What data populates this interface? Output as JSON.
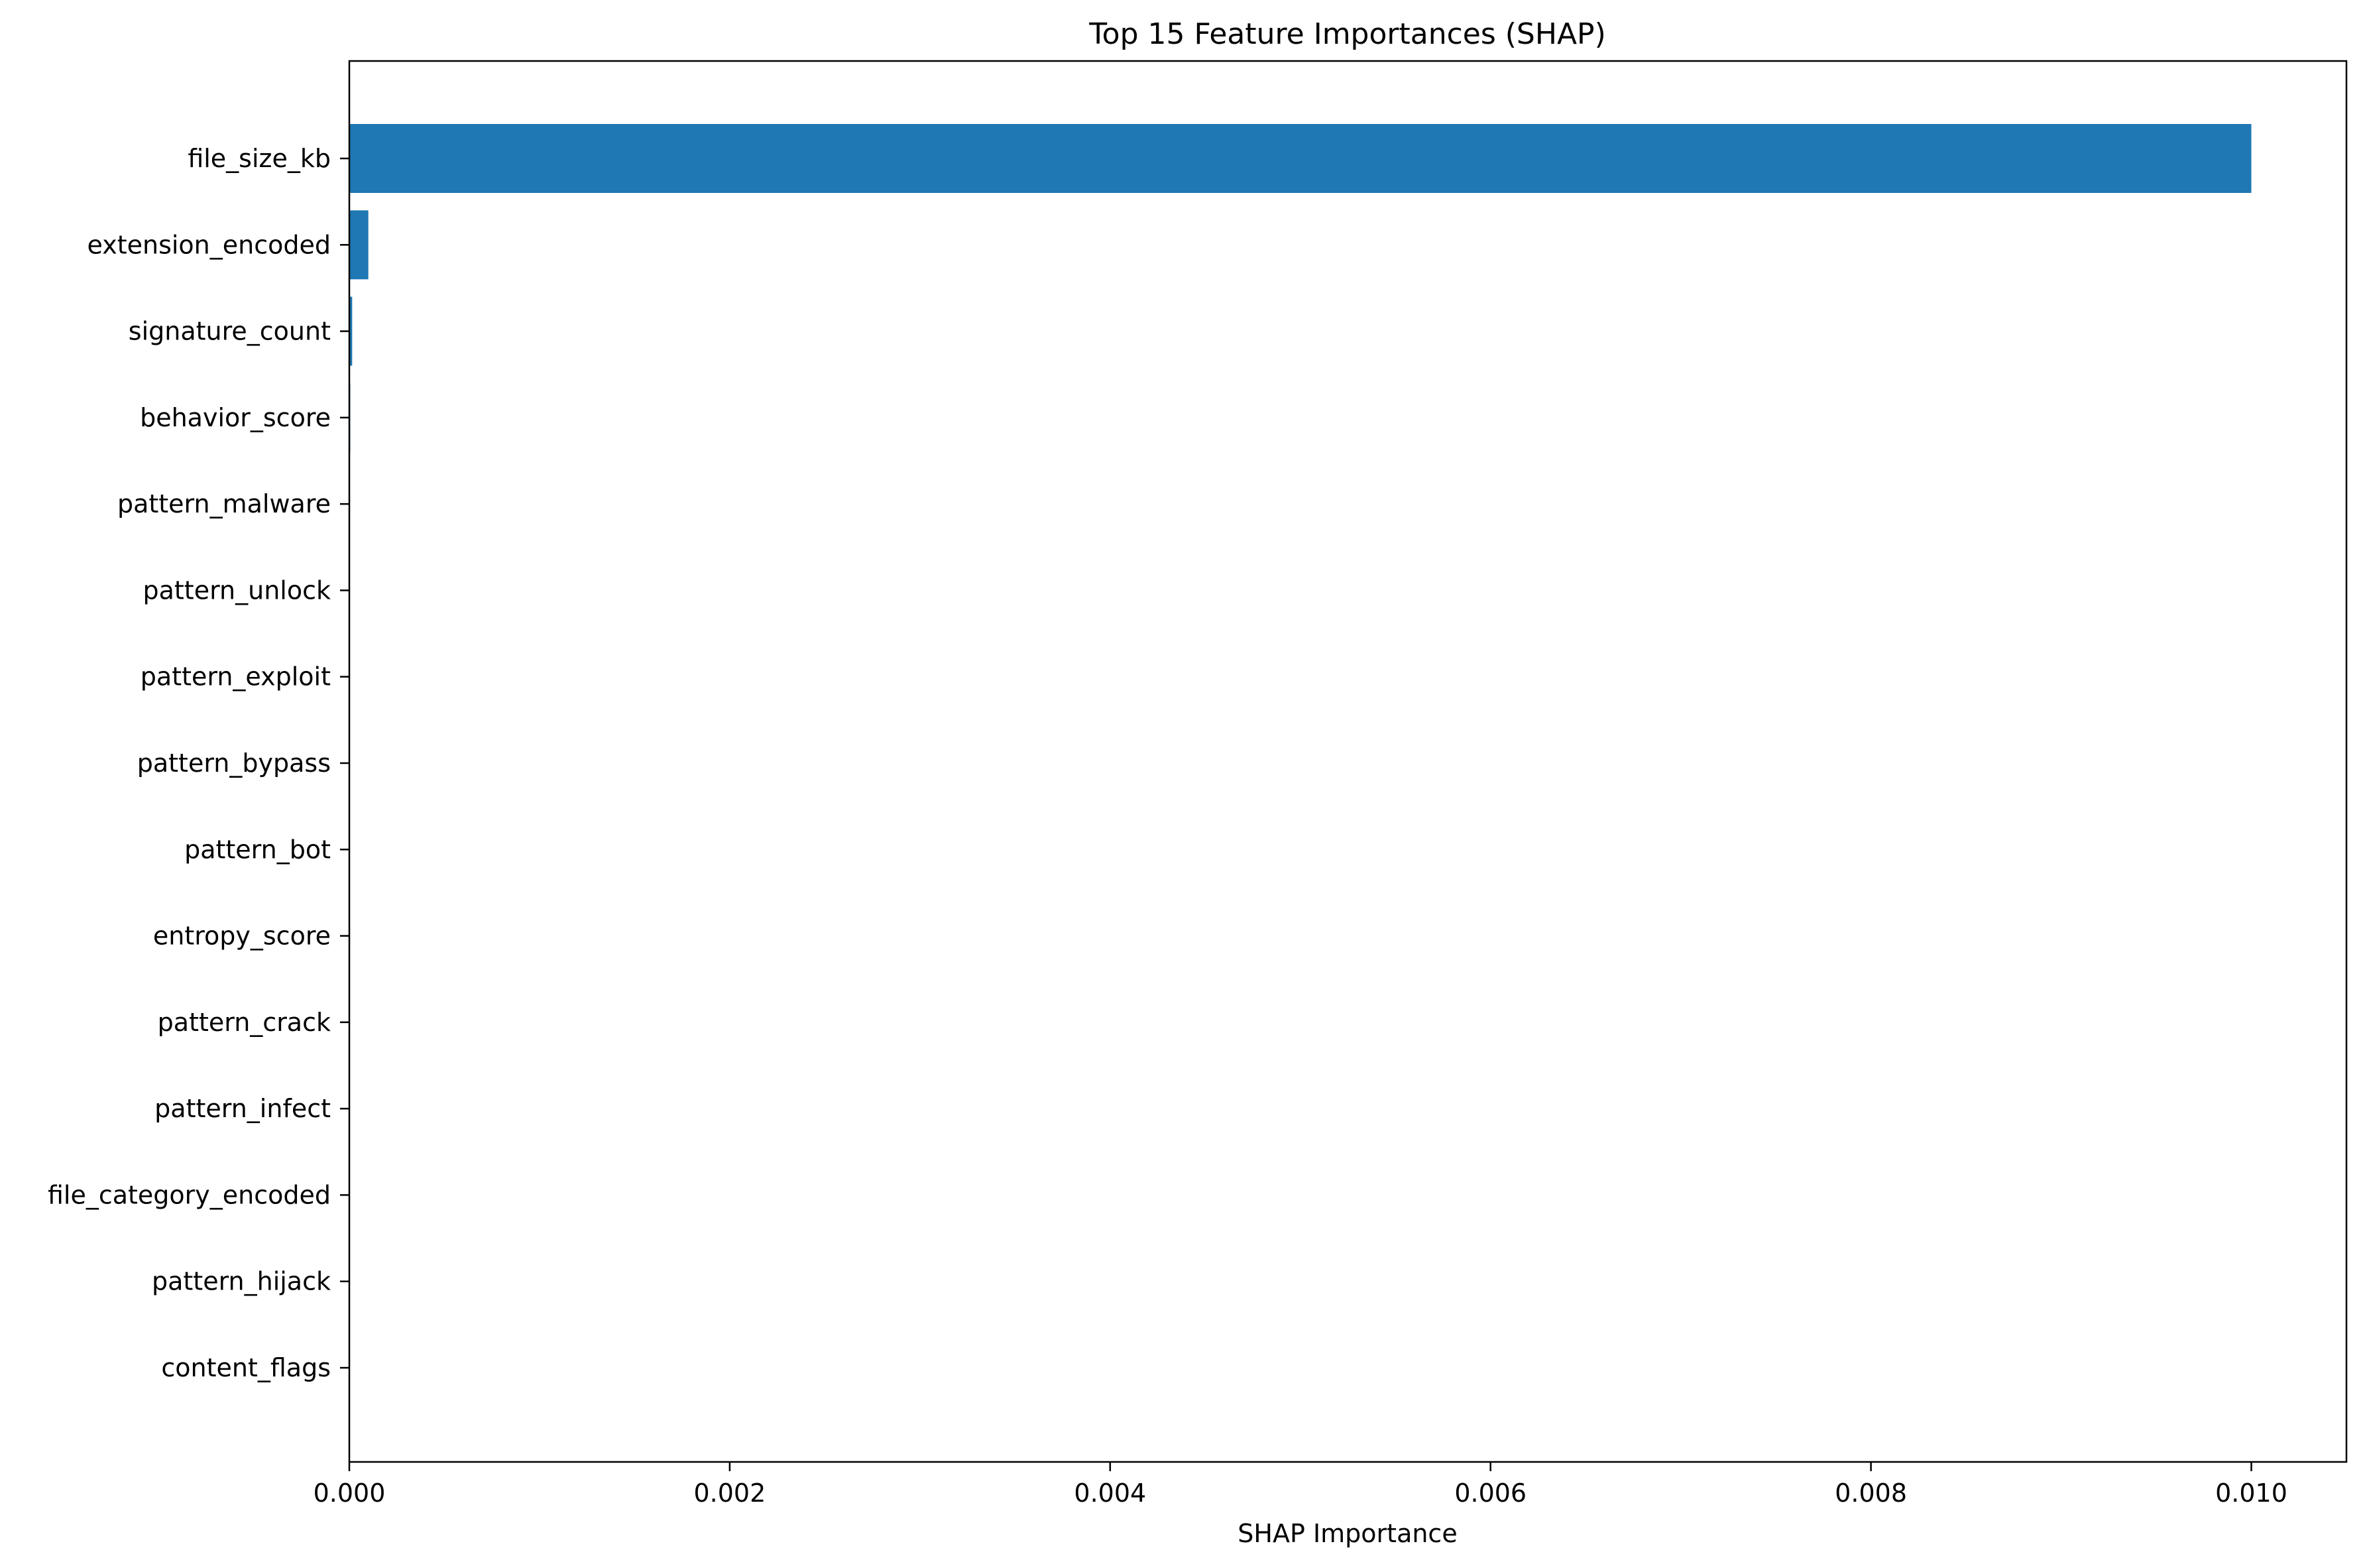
{
  "chart_data": {
    "type": "bar",
    "orientation": "horizontal",
    "title": "Top 15 Feature Importances (SHAP)",
    "xlabel": "SHAP Importance",
    "ylabel": "",
    "xlim": [
      0,
      0.0105
    ],
    "xticks": [
      0.0,
      0.002,
      0.004,
      0.006,
      0.008,
      0.01
    ],
    "xtick_labels": [
      "0.000",
      "0.002",
      "0.004",
      "0.006",
      "0.008",
      "0.010"
    ],
    "grid": false,
    "bar_color": "#1f77b4",
    "categories": [
      "file_size_kb",
      "extension_encoded",
      "signature_count",
      "behavior_score",
      "pattern_malware",
      "pattern_unlock",
      "pattern_exploit",
      "pattern_bypass",
      "pattern_bot",
      "entropy_score",
      "pattern_crack",
      "pattern_infect",
      "file_category_encoded",
      "pattern_hijack",
      "content_flags"
    ],
    "values": [
      0.01,
      0.0001,
      1.5e-05,
      5e-06,
      0.0,
      0.0,
      0.0,
      0.0,
      0.0,
      0.0,
      0.0,
      0.0,
      0.0,
      0.0,
      0.0
    ]
  }
}
